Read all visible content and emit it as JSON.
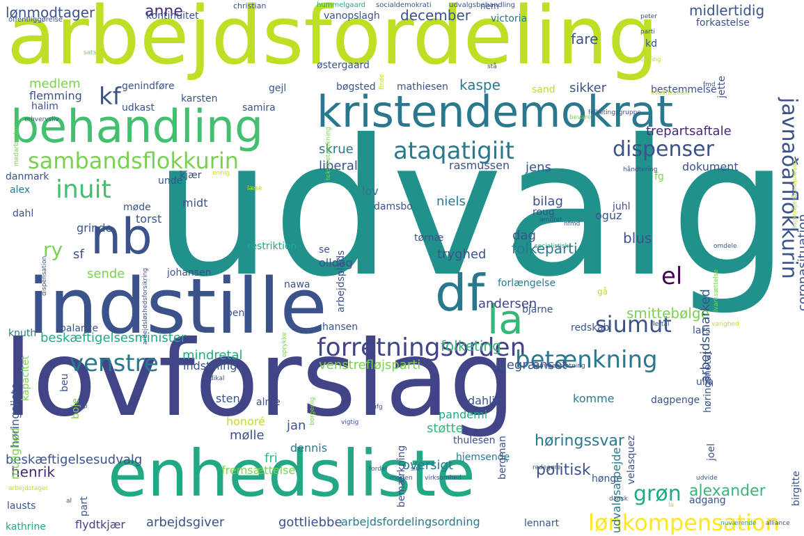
{
  "cloud": {
    "words": [
      {
        "text": "udvalg",
        "color": "#21918c"
      },
      {
        "text": "lovforslag",
        "color": "#414487"
      },
      {
        "text": "arbejdsfordeling",
        "color": "#bddf26"
      },
      {
        "text": "indstille",
        "color": "#3b528b"
      },
      {
        "text": "kristendemokrat",
        "color": "#2a788e"
      },
      {
        "text": "enhedsliste",
        "color": "#22a884"
      },
      {
        "text": "behandling",
        "color": "#44bf70"
      },
      {
        "text": "nb",
        "color": "#3b528b"
      },
      {
        "text": "df",
        "color": "#2a788e"
      },
      {
        "text": "la",
        "color": "#35b779"
      },
      {
        "text": "ataqatigiit",
        "color": "#2a788e"
      },
      {
        "text": "sambandsflokkurin",
        "color": "#7ad151"
      },
      {
        "text": "forretningsorden",
        "color": "#414487"
      },
      {
        "text": "venstre",
        "color": "#2a788e"
      },
      {
        "text": "betænkning",
        "color": "#2a788e"
      },
      {
        "text": "siumut",
        "color": "#3b528b"
      },
      {
        "text": "inuit",
        "color": "#44bf70"
      },
      {
        "text": "dispenser",
        "color": "#3b528b"
      },
      {
        "text": "el",
        "color": "#440154"
      },
      {
        "text": "lønkompensation",
        "color": "#fde725"
      },
      {
        "text": "kf",
        "color": "#3b528b"
      },
      {
        "text": "grøn",
        "color": "#22a884"
      },
      {
        "text": "ry",
        "color": "#7ad151"
      },
      {
        "text": "lønmodtager",
        "color": "#3b528b"
      },
      {
        "text": "december",
        "color": "#3b528b"
      },
      {
        "text": "midlertidig",
        "color": "#3b528b"
      },
      {
        "text": "anne",
        "color": "#482878"
      },
      {
        "text": "medlem",
        "color": "#7ad151"
      },
      {
        "text": "fare",
        "color": "#3b528b"
      },
      {
        "text": "kaspe",
        "color": "#2a788e"
      },
      {
        "text": "sikker",
        "color": "#3b528b"
      },
      {
        "text": "skrue",
        "color": "#2a788e"
      },
      {
        "text": "liberal",
        "color": "#3b528b"
      },
      {
        "text": "jens",
        "color": "#3b528b"
      },
      {
        "text": "rasmussen",
        "color": "#3b528b"
      },
      {
        "text": "trepartsaftale",
        "color": "#482878"
      },
      {
        "text": "dokument",
        "color": "#3b528b"
      },
      {
        "text": "alexander",
        "color": "#35b779"
      },
      {
        "text": "høringssvar",
        "color": "#2a788e"
      },
      {
        "text": "politisk",
        "color": "#3b528b"
      },
      {
        "text": "henrik",
        "color": "#482878"
      },
      {
        "text": "beskæftigelsesudvalg",
        "color": "#3b528b"
      },
      {
        "text": "beskæftigelsesminister",
        "color": "#22a884"
      },
      {
        "text": "folkeparti",
        "color": "#2a788e"
      },
      {
        "text": "folketing",
        "color": "#35b779"
      },
      {
        "text": "smittebølge",
        "color": "#7ad151"
      },
      {
        "text": "andersen",
        "color": "#414487"
      },
      {
        "text": "mindretal",
        "color": "#22a884"
      },
      {
        "text": "indstilling",
        "color": "#3b528b"
      },
      {
        "text": "venstrefløjsparti",
        "color": "#7ad151"
      },
      {
        "text": "ubegrænset",
        "color": "#3b528b"
      },
      {
        "text": "oversigt",
        "color": "#2a788e"
      },
      {
        "text": "støtte",
        "color": "#35b779"
      },
      {
        "text": "pandemi",
        "color": "#22a884"
      },
      {
        "text": "fri",
        "color": "#35b779"
      },
      {
        "text": "sende",
        "color": "#7ad151"
      },
      {
        "text": "blus",
        "color": "#3b528b"
      },
      {
        "text": "dag",
        "color": "#3b528b"
      },
      {
        "text": "bilag",
        "color": "#3b528b"
      },
      {
        "text": "niels",
        "color": "#2a788e"
      },
      {
        "text": "lov",
        "color": "#2a788e"
      },
      {
        "text": "tryghed",
        "color": "#3b528b"
      },
      {
        "text": "arbejdsgiver",
        "color": "#3b528b"
      },
      {
        "text": "gottliebbe",
        "color": "#3b528b"
      },
      {
        "text": "arbejdsfordelingsordning",
        "color": "#2a788e"
      },
      {
        "text": "flydtkjær",
        "color": "#414487"
      },
      {
        "text": "kathrine",
        "color": "#22a884"
      },
      {
        "text": "lausts",
        "color": "#3b528b"
      },
      {
        "text": "lennart",
        "color": "#3b528b"
      },
      {
        "text": "hjemsende",
        "color": "#2a788e"
      },
      {
        "text": "fremsættelse",
        "color": "#7ad151"
      },
      {
        "text": "hønge",
        "color": "#3b528b"
      },
      {
        "text": "adgang",
        "color": "#3b528b"
      },
      {
        "text": "dennis",
        "color": "#2a788e"
      },
      {
        "text": "mølle",
        "color": "#3b528b"
      },
      {
        "text": "jan",
        "color": "#3b528b"
      },
      {
        "text": "sten",
        "color": "#3b528b"
      },
      {
        "text": "alme",
        "color": "#3b528b"
      },
      {
        "text": "honoré",
        "color": "#bddf26"
      },
      {
        "text": "dahlin",
        "color": "#3b528b"
      },
      {
        "text": "komme",
        "color": "#2a788e"
      },
      {
        "text": "dagpenge",
        "color": "#3b528b"
      },
      {
        "text": "thulesen",
        "color": "#3b528b"
      },
      {
        "text": "balance",
        "color": "#3b528b"
      },
      {
        "text": "knuth",
        "color": "#2a788e"
      },
      {
        "text": "hansen",
        "color": "#3b528b"
      },
      {
        "text": "bent",
        "color": "#3b528b"
      },
      {
        "text": "nawa",
        "color": "#3b528b"
      },
      {
        "text": "redskab",
        "color": "#3b528b"
      },
      {
        "text": "bjarne",
        "color": "#3b528b"
      },
      {
        "text": "forlængelse",
        "color": "#2a788e"
      },
      {
        "text": "johansen",
        "color": "#3b528b"
      },
      {
        "text": "olldag",
        "color": "#3b528b"
      },
      {
        "text": "se",
        "color": "#3b528b"
      },
      {
        "text": "restriktion",
        "color": "#22a884"
      },
      {
        "text": "torst",
        "color": "#3b528b"
      },
      {
        "text": "møde",
        "color": "#3b528b"
      },
      {
        "text": "sf",
        "color": "#3b528b"
      },
      {
        "text": "grinde",
        "color": "#3b528b"
      },
      {
        "text": "midt",
        "color": "#3b528b"
      },
      {
        "text": "kjær",
        "color": "#3b528b"
      },
      {
        "text": "danmark",
        "color": "#3b528b"
      },
      {
        "text": "alex",
        "color": "#2a788e"
      },
      {
        "text": "dahl",
        "color": "#3b528b"
      },
      {
        "text": "unde",
        "color": "#3b528b"
      },
      {
        "text": "damsbo",
        "color": "#3b528b"
      },
      {
        "text": "roug",
        "color": "#3b528b"
      },
      {
        "text": "oguz",
        "color": "#3b528b"
      },
      {
        "text": "fg",
        "color": "#7ad151"
      },
      {
        "text": "juhl",
        "color": "#3b528b"
      },
      {
        "text": "tørnæ",
        "color": "#3b528b"
      },
      {
        "text": "flemming",
        "color": "#3b528b"
      },
      {
        "text": "halim",
        "color": "#3b528b"
      },
      {
        "text": "genindføre",
        "color": "#3b528b"
      },
      {
        "text": "udkast",
        "color": "#3b528b"
      },
      {
        "text": "karsten",
        "color": "#3b528b"
      },
      {
        "text": "samira",
        "color": "#3b528b"
      },
      {
        "text": "gejl",
        "color": "#3b528b"
      },
      {
        "text": "bøgsted",
        "color": "#3b528b"
      },
      {
        "text": "mathiesen",
        "color": "#3b528b"
      },
      {
        "text": "sand",
        "color": "#bddf26"
      },
      {
        "text": "bestemmelse",
        "color": "#3b528b"
      },
      {
        "text": "østergaard",
        "color": "#3b528b"
      },
      {
        "text": "kontinuitet",
        "color": "#3b528b"
      },
      {
        "text": "vanopslagh",
        "color": "#3b528b"
      },
      {
        "text": "victoria",
        "color": "#2a788e"
      },
      {
        "text": "nem",
        "color": "#3b528b"
      },
      {
        "text": "forkastelse",
        "color": "#3b528b"
      },
      {
        "text": "kd",
        "color": "#3b528b"
      },
      {
        "text": "jette",
        "color": "#3b528b"
      },
      {
        "text": "christian",
        "color": "#3b528b"
      },
      {
        "text": "hummelgaard",
        "color": "#22a884"
      },
      {
        "text": "socialdemokrati",
        "color": "#3b528b"
      },
      {
        "text": "udvalgsbehandling",
        "color": "#3b528b"
      },
      {
        "text": "offentliggørelse",
        "color": "#3b528b"
      },
      {
        "text": "arbejdsmarked",
        "color": "#3b528b"
      },
      {
        "text": "coronasituation",
        "color": "#3b528b"
      },
      {
        "text": "arbejdsplads",
        "color": "#3b528b"
      },
      {
        "text": "høringsliste",
        "color": "#3b528b"
      },
      {
        "text": "kapacitet",
        "color": "#7ad151"
      },
      {
        "text": "høringsnotat",
        "color": "#3b528b"
      },
      {
        "text": "udvalgsarbejde",
        "color": "#2a788e"
      },
      {
        "text": "bemærkning",
        "color": "#3b528b"
      },
      {
        "text": "bergman",
        "color": "#3b528b"
      },
      {
        "text": "velasquez",
        "color": "#3b528b"
      },
      {
        "text": "joel",
        "color": "#3b528b"
      },
      {
        "text": "birgitte",
        "color": "#3b528b"
      },
      {
        "text": "ulla",
        "color": "#3b528b"
      },
      {
        "text": "lars",
        "color": "#3b528b"
      },
      {
        "text": "mulighed",
        "color": "#7ad151"
      },
      {
        "text": "beu",
        "color": "#3b528b"
      },
      {
        "text": "boje",
        "color": "#7ad151"
      },
      {
        "text": "part",
        "color": "#3b528b"
      },
      {
        "text": "javnaðarflokkurin",
        "color": "#3b528b"
      },
      {
        "text": "sats",
        "color": "#7ad151"
      },
      {
        "text": "peter",
        "color": "#3b528b"
      },
      {
        "text": "parti",
        "color": "#3b528b"
      },
      {
        "text": "stilling",
        "color": "#bddf26"
      },
      {
        "text": "stå",
        "color": "#3b528b"
      },
      {
        "text": "fmd",
        "color": "#3b528b"
      },
      {
        "text": "medarbejder",
        "color": "#7ad151"
      },
      {
        "text": "erhvervsliv",
        "color": "#3b528b"
      },
      {
        "text": "tekstbetænkning",
        "color": "#7ad151"
      },
      {
        "text": "finde",
        "color": "#bddf26"
      },
      {
        "text": "folketingsgruppe",
        "color": "#3b528b"
      },
      {
        "text": "bevare",
        "color": "#7ad151"
      },
      {
        "text": "håndtering",
        "color": "#3b528b"
      },
      {
        "text": "ændret",
        "color": "#3b528b"
      },
      {
        "text": "nfmd",
        "color": "#3b528b"
      },
      {
        "text": "socialistisk",
        "color": "#22a884"
      },
      {
        "text": "omdele",
        "color": "#3b528b"
      },
      {
        "text": "flertal",
        "color": "#3b528b"
      },
      {
        "text": "varighed",
        "color": "#bddf26"
      },
      {
        "text": "ivarksættelse",
        "color": "#7ad151"
      },
      {
        "text": "læse",
        "color": "#bddf26"
      },
      {
        "text": "dispensation",
        "color": "#3b528b"
      },
      {
        "text": "radikal",
        "color": "#3b528b"
      },
      {
        "text": "sammensætning",
        "color": "#3b528b"
      },
      {
        "text": "redegøre",
        "color": "#3b528b"
      },
      {
        "text": "nuværende",
        "color": "#22a884"
      },
      {
        "text": "alliance",
        "color": "#3b528b"
      },
      {
        "text": "dansk",
        "color": "#3b528b"
      },
      {
        "text": "ufg",
        "color": "#3b528b"
      },
      {
        "text": "vigtig",
        "color": "#3b528b"
      },
      {
        "text": "morten",
        "color": "#3b528b"
      },
      {
        "text": "fordel",
        "color": "#3b528b"
      },
      {
        "text": "virksomhed",
        "color": "#3b528b"
      },
      {
        "text": "siu",
        "color": "#3b528b"
      },
      {
        "text": "udvide",
        "color": "#3b528b"
      },
      {
        "text": "arbejdstager",
        "color": "#bddf26"
      },
      {
        "text": "sp",
        "color": "#3b528b"
      },
      {
        "text": "al",
        "color": "#3b528b"
      },
      {
        "text": "oprykke",
        "color": "#7ad151"
      },
      {
        "text": "borgerlig",
        "color": "#7ad151"
      },
      {
        "text": "gå",
        "color": "#bddf26"
      },
      {
        "text": "la",
        "color": "#bddf26"
      },
      {
        "text": "ennig",
        "color": "#bddf26"
      },
      {
        "text": "betænkningsafgivelse",
        "color": "#bddf26"
      },
      {
        "text": "arbejdsløshedsforsikring",
        "color": "#3b528b"
      },
      {
        "text": "kvalifikation",
        "color": "#bddf26"
      }
    ]
  }
}
